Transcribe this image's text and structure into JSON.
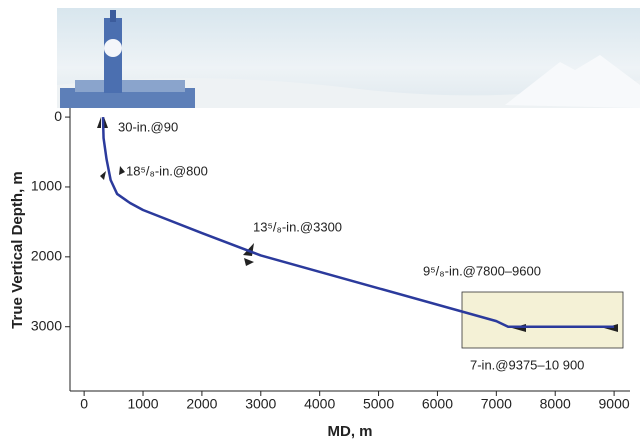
{
  "chart_data": {
    "type": "line",
    "x_label": "MD, m",
    "y_label": "True Vertical Depth, m",
    "xlim": [
      -240,
      9270
    ],
    "ylim": [
      -130,
      3920
    ],
    "y_inverted": true,
    "xticks": [
      0,
      1000,
      2000,
      3000,
      4000,
      5000,
      6000,
      7000,
      8000,
      9000
    ],
    "yticks": [
      0,
      1000,
      2000,
      3000
    ],
    "series": [
      {
        "color": "#2b3a9c",
        "x": [
          320,
          330,
          380,
          450,
          560,
          780,
          1000,
          2000,
          3000,
          5000,
          7000,
          7200,
          9000
        ],
        "values": [
          0,
          300,
          600,
          900,
          1100,
          1230,
          1330,
          1660,
          1980,
          2450,
          2920,
          3000,
          3000
        ]
      }
    ],
    "annotations": [
      "30-in.@90",
      "18⁵/₈-in.@800",
      "13⁵/₈-in.@3300",
      "9⁵/₈-in.@7800–9600",
      "7-in.@9375–10 900"
    ]
  }
}
